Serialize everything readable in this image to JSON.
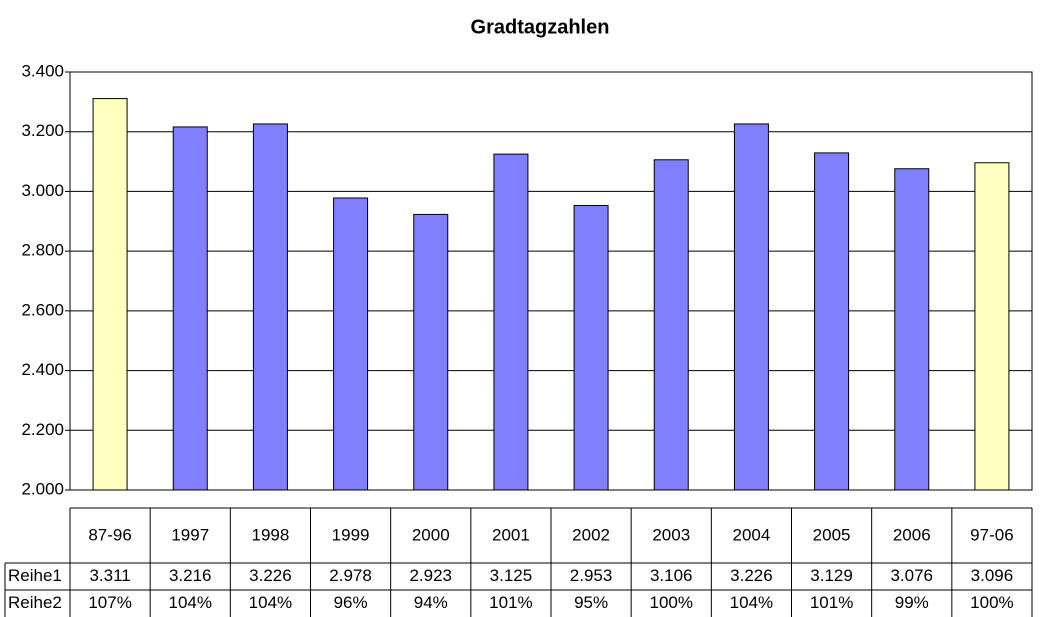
{
  "chart_data": {
    "type": "bar",
    "title": "Gradtagzahlen",
    "categories": [
      "87-96",
      "1997",
      "1998",
      "1999",
      "2000",
      "2001",
      "2002",
      "2003",
      "2004",
      "2005",
      "2006",
      "97-06"
    ],
    "series": [
      {
        "name": "Reihe1",
        "values": [
          3311,
          3216,
          3226,
          2978,
          2923,
          3125,
          2953,
          3106,
          3226,
          3129,
          3076,
          3096
        ],
        "value_labels": [
          "3.311",
          "3.216",
          "3.226",
          "2.978",
          "2.923",
          "3.125",
          "2.953",
          "3.106",
          "3.226",
          "3.129",
          "3.076",
          "3.096"
        ],
        "colors": [
          "#ffffc0",
          "#8080ff",
          "#8080ff",
          "#8080ff",
          "#8080ff",
          "#8080ff",
          "#8080ff",
          "#8080ff",
          "#8080ff",
          "#8080ff",
          "#8080ff",
          "#ffffc0"
        ]
      },
      {
        "name": "Reihe2",
        "values": [
          107,
          104,
          104,
          96,
          94,
          101,
          95,
          100,
          104,
          101,
          99,
          100
        ],
        "value_labels": [
          "107%",
          "104%",
          "104%",
          "96%",
          "94%",
          "101%",
          "95%",
          "100%",
          "104%",
          "101%",
          "99%",
          "100%"
        ]
      }
    ],
    "ylim": [
      2000,
      3400
    ],
    "yticks": [
      {
        "value": 2000,
        "label": "2.000"
      },
      {
        "value": 2200,
        "label": "2.200"
      },
      {
        "value": 2400,
        "label": "2.400"
      },
      {
        "value": 2600,
        "label": "2.600"
      },
      {
        "value": 2800,
        "label": "2.800"
      },
      {
        "value": 3000,
        "label": "3.000"
      },
      {
        "value": 3200,
        "label": "3.200"
      },
      {
        "value": 3400,
        "label": "3.400"
      }
    ],
    "grid": true
  }
}
